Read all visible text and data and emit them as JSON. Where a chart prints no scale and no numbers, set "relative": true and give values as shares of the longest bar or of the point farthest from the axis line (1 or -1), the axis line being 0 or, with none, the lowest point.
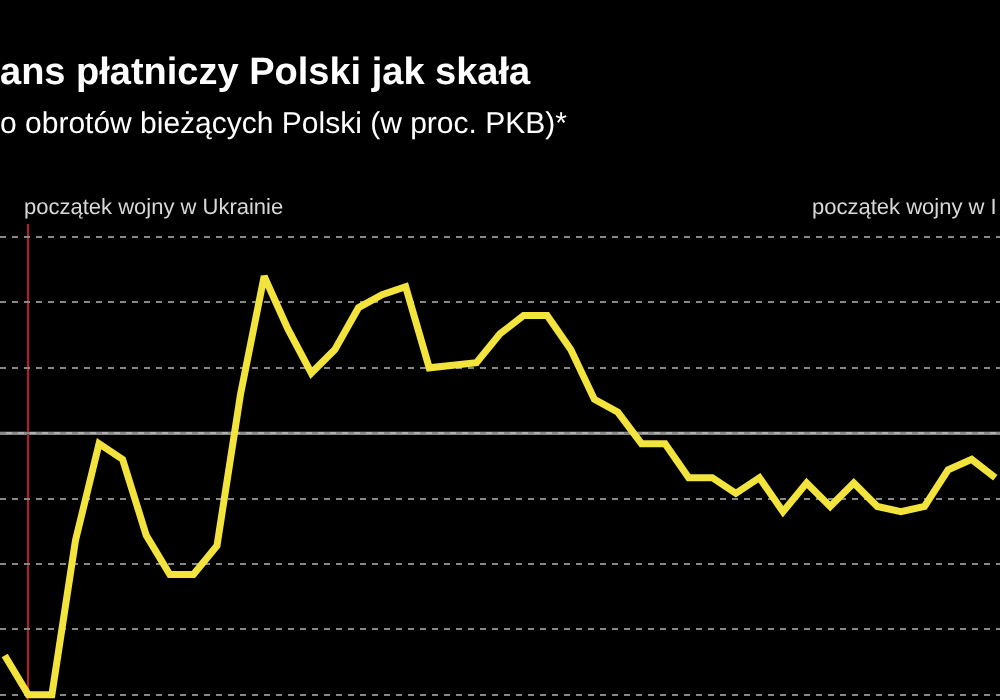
{
  "chart_data": {
    "type": "line",
    "relative": true,
    "title": "ans płatniczy Polski jak skała",
    "subtitle": "o obrotów bieżących Polski (w proc. PKB)*",
    "categories": [
      null,
      null,
      null,
      null,
      null,
      null,
      null,
      null,
      null,
      null,
      null,
      null,
      null,
      null,
      null,
      null,
      null,
      null,
      null,
      null,
      null,
      null,
      null,
      null,
      null,
      null,
      null,
      null,
      null,
      null,
      null,
      null,
      null,
      null,
      null,
      null,
      null,
      null,
      null,
      null,
      null,
      null,
      null
    ],
    "series": [
      {
        "color": "#f2e43c",
        "values": [
          -0.85,
          -1,
          -1,
          -0.41,
          -0.04,
          -0.1,
          -0.39,
          -0.54,
          -0.54,
          -0.43,
          0.15,
          0.6,
          0.4,
          0.23,
          0.32,
          0.48,
          0.53,
          0.56,
          0.25,
          0.26,
          0.27,
          0.38,
          0.45,
          0.45,
          0.32,
          0.13,
          0.08,
          -0.04,
          -0.04,
          -0.17,
          -0.17,
          -0.23,
          -0.17,
          -0.3,
          -0.19,
          -0.28,
          -0.19,
          -0.28,
          -0.3,
          -0.28,
          -0.14,
          -0.1,
          -0.17
        ]
      }
    ],
    "ref_lines": [
      {
        "axis": "y",
        "value": 0,
        "color": "#b0b0b0"
      }
    ],
    "annotations": [
      "początek wojny w Ukrainie",
      "początek wojny w I"
    ],
    "grid": "y",
    "marker": "none",
    "line_style": "solid"
  }
}
